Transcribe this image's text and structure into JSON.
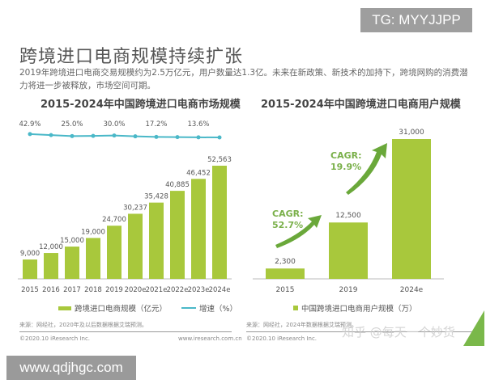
{
  "watermark_tg": "TG: MYYJJPP",
  "watermark_site": "www.qdjhgc.com",
  "watermark_zhihu": "知乎 @每天一个妙货",
  "page_title": "跨境进口电商规模持续扩张",
  "description": "2019年跨境进口电商交易规模约为2.5万亿元，用户数量达1.3亿。未来在新政策、新技术的加持下，跨境网购的消费潜力将进一步被释放，市场空间可期。",
  "colors": {
    "bar": "#a8c83c",
    "line": "#4ab8c8",
    "arrow": "#6aa83a",
    "cagr_text": "#7ab04a"
  },
  "chart_data": [
    {
      "type": "bar",
      "title": "2015-2024年中国跨境进口电商市场规模",
      "categories": [
        "2015",
        "2016",
        "2017",
        "2018",
        "2019",
        "2020e",
        "2021e",
        "2022e",
        "2023e",
        "2024e"
      ],
      "series": [
        {
          "name": "跨境进口电商规模（亿元）",
          "type": "bar",
          "values": [
            9000,
            12000,
            15000,
            19000,
            24700,
            30237,
            35428,
            40885,
            46452,
            52563
          ],
          "labels": [
            "9,000",
            "12,000",
            "15,000",
            "19,000",
            "24,700",
            "30,237",
            "35,428",
            "40,885",
            "46,452",
            "52,563"
          ]
        },
        {
          "name": "增速（%）",
          "type": "line",
          "values": [
            42.9,
            33.3,
            25.0,
            26.7,
            30.0,
            22.4,
            17.2,
            15.4,
            13.6,
            13.2
          ],
          "labels": [
            "42.9%",
            null,
            "25.0%",
            null,
            "30.0%",
            null,
            "17.2%",
            null,
            "13.6%",
            null
          ]
        }
      ],
      "legend": "bottom",
      "source": "来源：网经社，2020年及以后数据根据艾瑞预测。",
      "copyright": "©2020.10 iResearch Inc.",
      "website": "www.iresearch.com.cn"
    },
    {
      "type": "bar",
      "title": "2015-2024年中国跨境进口电商用户规模",
      "categories": [
        "2015",
        "2019",
        "2024e"
      ],
      "series": [
        {
          "name": "中国跨境进口电商用户规模（万）",
          "values": [
            2300,
            12500,
            31000
          ],
          "labels": [
            "2,300",
            "12,500",
            "31,000"
          ]
        }
      ],
      "annotations": [
        {
          "text": "CAGR:",
          "value": "52.7%"
        },
        {
          "text": "CAGR:",
          "value": "19.9%"
        }
      ],
      "legend": "bottom",
      "source": "来源：网经社，2024年数据根据艾瑞预测。",
      "copyright": "©2020.10 iResearch Inc."
    }
  ]
}
